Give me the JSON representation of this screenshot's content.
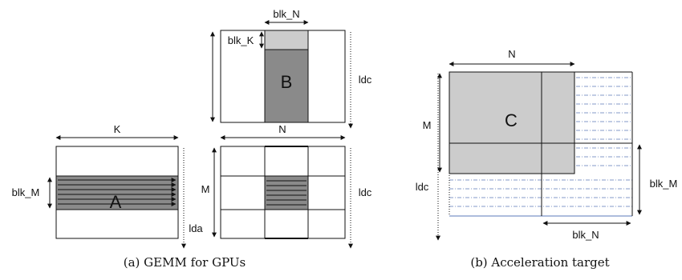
{
  "panel_a": {
    "caption": "(a) GEMM for GPUs",
    "matrix_a": {
      "name": "A",
      "width_label": "K",
      "height_label": "blk_M",
      "ld_label": "lda"
    },
    "matrix_b": {
      "name": "B",
      "width_label": "blk_N",
      "height_label": "blk_K",
      "ld_label": "ldc"
    },
    "matrix_c": {
      "width_label": "N",
      "height_label": "M",
      "ld_label": "ldc"
    }
  },
  "panel_b": {
    "caption": "(b) Acceleration target",
    "matrix_c": {
      "name": "C",
      "width_label": "N",
      "height_label": "M",
      "ld_label": "ldc",
      "blk_m_label": "blk_M",
      "blk_n_label": "blk_N"
    }
  },
  "colors": {
    "dark_fill": "#8a8a8a",
    "light_fill": "#cccccc",
    "line": "#111111",
    "dash_blue": "#5b78b8"
  }
}
